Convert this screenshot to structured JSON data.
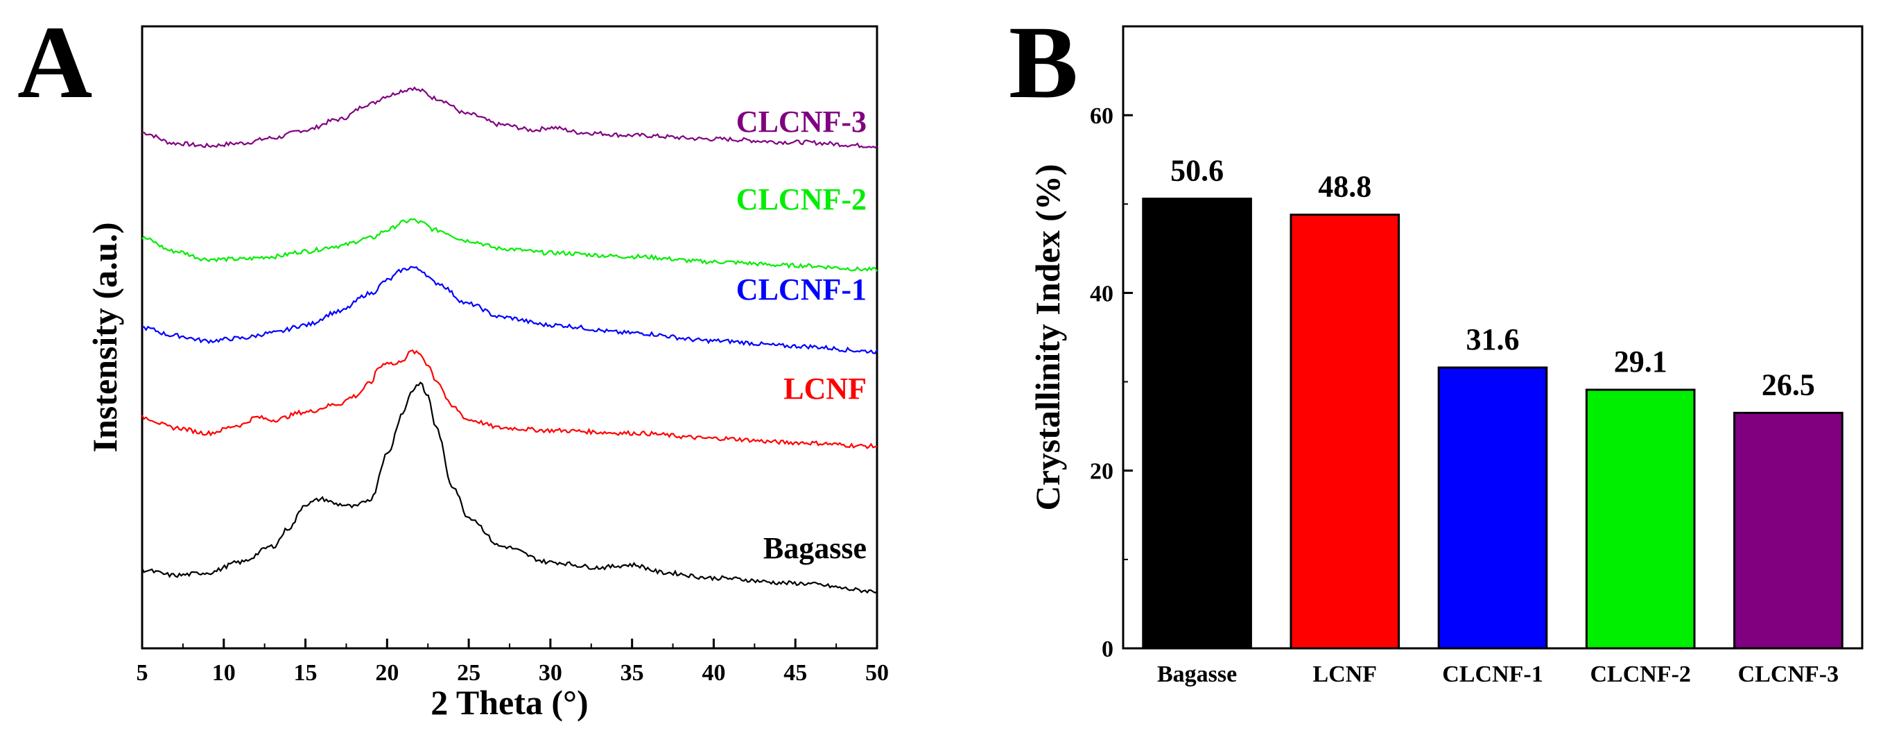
{
  "chart_data": [
    {
      "panel": "A",
      "type": "line",
      "xlabel": "2 Theta (°)",
      "ylabel": "Instensity (a.u.)",
      "xlim": [
        5,
        50
      ],
      "xticks": [
        5,
        10,
        15,
        20,
        25,
        30,
        35,
        40,
        45,
        50
      ],
      "yticks": [],
      "grid": false,
      "series": [
        {
          "name": "CLCNF-3",
          "color": "#800080",
          "x": [
            5,
            7,
            9,
            11,
            13,
            15,
            17,
            19,
            20,
            21,
            21.5,
            22,
            23,
            25,
            27,
            29,
            30,
            32,
            35,
            40,
            45,
            50
          ],
          "y": [
            0.86,
            0.84,
            0.835,
            0.84,
            0.85,
            0.865,
            0.885,
            0.915,
            0.93,
            0.94,
            0.945,
            0.94,
            0.925,
            0.895,
            0.875,
            0.865,
            0.87,
            0.86,
            0.855,
            0.848,
            0.842,
            0.835
          ]
        },
        {
          "name": "CLCNF-2",
          "color": "#00ee00",
          "x": [
            5,
            7,
            9,
            11,
            13,
            15,
            17,
            19,
            20,
            21,
            21.5,
            22,
            23,
            25,
            27,
            30,
            35,
            40,
            45,
            50
          ],
          "y": [
            0.66,
            0.635,
            0.62,
            0.62,
            0.625,
            0.635,
            0.645,
            0.66,
            0.675,
            0.69,
            0.695,
            0.69,
            0.675,
            0.655,
            0.64,
            0.632,
            0.625,
            0.615,
            0.608,
            0.6
          ]
        },
        {
          "name": "CLCNF-1",
          "color": "#0000ff",
          "x": [
            5,
            7,
            9,
            11,
            13,
            15,
            17,
            19,
            20,
            21,
            21.5,
            22,
            23,
            25,
            27,
            30,
            35,
            40,
            45,
            50
          ],
          "y": [
            0.49,
            0.475,
            0.465,
            0.47,
            0.48,
            0.495,
            0.52,
            0.555,
            0.58,
            0.6,
            0.605,
            0.6,
            0.575,
            0.535,
            0.51,
            0.495,
            0.48,
            0.465,
            0.455,
            0.445
          ]
        },
        {
          "name": "LCNF",
          "color": "#ff0000",
          "x": [
            5,
            7,
            9,
            11,
            12,
            13,
            15,
            17,
            18,
            19,
            19.5,
            20,
            20.5,
            21,
            21.5,
            22,
            22.5,
            23,
            24,
            25,
            27,
            30,
            35,
            40,
            45,
            50
          ],
          "y": [
            0.32,
            0.3,
            0.29,
            0.305,
            0.32,
            0.315,
            0.33,
            0.345,
            0.36,
            0.385,
            0.415,
            0.425,
            0.42,
            0.43,
            0.445,
            0.44,
            0.42,
            0.39,
            0.34,
            0.315,
            0.3,
            0.295,
            0.29,
            0.28,
            0.272,
            0.265
          ]
        },
        {
          "name": "Bagasse",
          "color": "#000000",
          "x": [
            5,
            7,
            9,
            11,
            13,
            14,
            15,
            16,
            17,
            18,
            19,
            20,
            21,
            21.5,
            22,
            22.5,
            23,
            24,
            25,
            27,
            30,
            33,
            35,
            37,
            40,
            45,
            50
          ],
          "y": [
            0.03,
            0.02,
            0.025,
            0.045,
            0.075,
            0.11,
            0.155,
            0.165,
            0.155,
            0.15,
            0.165,
            0.25,
            0.33,
            0.37,
            0.385,
            0.36,
            0.3,
            0.19,
            0.13,
            0.075,
            0.045,
            0.035,
            0.04,
            0.025,
            0.015,
            0.005,
            -0.01
          ]
        }
      ]
    },
    {
      "panel": "B",
      "type": "bar",
      "ylabel": "Crystallinity Index (%)",
      "xlabel": "",
      "ylim": [
        0,
        70
      ],
      "yticks": [
        0,
        20,
        40,
        60
      ],
      "grid": false,
      "categories": [
        "Bagasse",
        "LCNF",
        "CLCNF-1",
        "CLCNF-2",
        "CLCNF-3"
      ],
      "values": [
        50.6,
        48.8,
        31.6,
        29.1,
        26.5
      ],
      "value_labels": [
        "50.6",
        "48.8",
        "31.6",
        "29.1",
        "26.5"
      ],
      "colors": [
        "#000000",
        "#ff0000",
        "#0000ff",
        "#00ee00",
        "#800080"
      ]
    }
  ]
}
